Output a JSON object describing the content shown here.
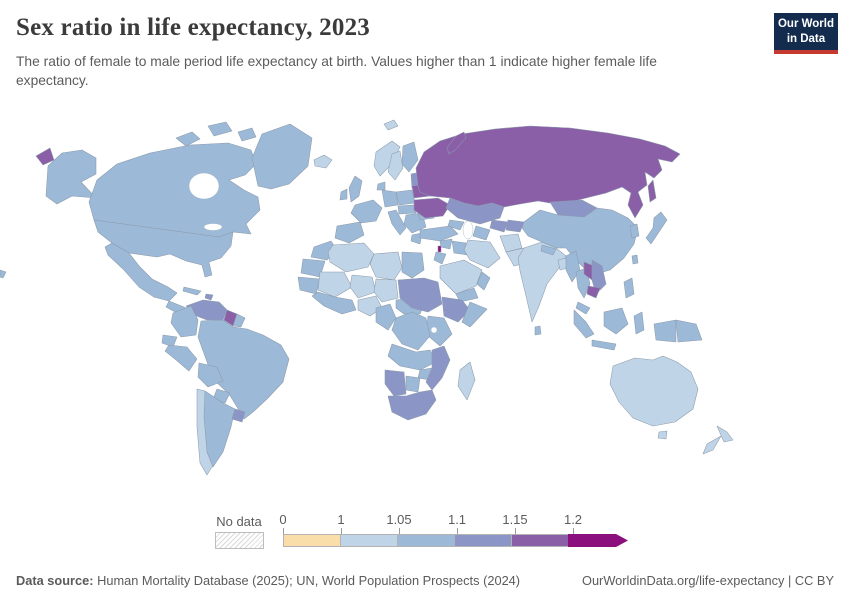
{
  "header": {
    "title": "Sex ratio in life expectancy, 2023",
    "subtitle": "The ratio of female to male period life expectancy at birth. Values higher than 1 indicate higher female life expectancy.",
    "logo_line1": "Our World",
    "logo_line2": "in Data"
  },
  "chart_data": {
    "type": "heatmap",
    "variant": "world-choropleth-map",
    "title": "Sex ratio in life expectancy, 2023",
    "unit": "female-to-male life expectancy ratio",
    "no_data_label": "No data",
    "legend_ticks": [
      "0",
      "1",
      "1.05",
      "1.1",
      "1.15",
      "1.2"
    ],
    "bins": [
      {
        "id": "b0",
        "range": "0-1",
        "color": "#fadeaa"
      },
      {
        "id": "b1",
        "range": "1-1.05",
        "color": "#c0d4e7"
      },
      {
        "id": "b2",
        "range": "1.05-1.1",
        "color": "#9cb9d8"
      },
      {
        "id": "b3",
        "range": "1.1-1.15",
        "color": "#8b96c6"
      },
      {
        "id": "b4",
        "range": "1.15-1.2",
        "color": "#8a5fa8"
      },
      {
        "id": "b5",
        "range": "1.2+",
        "color": "#8b0f7d"
      }
    ],
    "regions": {
      "usa": "b2",
      "canada": "b2",
      "greenland": "b2",
      "iceland": "b1",
      "mexico": "b2",
      "central-america": "b2",
      "cuba": "b2",
      "hispaniola": "b3",
      "venezuela": "b3",
      "guyana": "b4",
      "suriname": "b2",
      "colombia": "b2",
      "ecuador": "b2",
      "peru": "b2",
      "brazil": "b2",
      "bolivia": "b2",
      "paraguay": "b2",
      "chile": "b1",
      "argentina": "b2",
      "uruguay": "b3",
      "united-kingdom": "b2",
      "ireland": "b2",
      "norway": "b1",
      "sweden": "b1",
      "finland": "b2",
      "denmark": "b2",
      "baltic-states": "b3",
      "poland": "b2",
      "germany": "b2",
      "france": "b2",
      "spain-portugal": "b2",
      "italy": "b2",
      "central-europe": "b2",
      "balkans": "b2",
      "greece": "b2",
      "romania-bulgaria": "b2",
      "belarus": "b4",
      "ukraine": "b4",
      "russia": "b4",
      "morocco": "b2",
      "western-sahara-mauritania": "b2",
      "senegal-guinea": "b2",
      "algeria": "b1",
      "libya": "b1",
      "egypt": "b2",
      "mali": "b1",
      "niger": "b1",
      "chad": "b1",
      "nigeria": "b1",
      "west-africa-coast": "b2",
      "cameroon-gabon": "b2",
      "car-south-sudan": "b2",
      "sudan": "b3",
      "ethiopia": "b3",
      "somalia": "b2",
      "kenya-tanzania": "b2",
      "drc": "b2",
      "angola-zambia": "b2",
      "zimbabwe": "b2",
      "mozambique": "b3",
      "namibia": "b3",
      "botswana": "b2",
      "south-africa": "b3",
      "madagascar": "b1",
      "turkey": "b2",
      "syria": "b2",
      "lebanon": "b5",
      "israel-jordan": "b2",
      "iraq": "b2",
      "iran": "b1",
      "saudi-arabia": "b1",
      "yemen": "b2",
      "oman": "b2",
      "caucasus": "b2",
      "kazakhstan": "b3",
      "uzbekistan": "b3",
      "turkmenistan": "b2",
      "kyrgyzstan-tajikistan": "b3",
      "afghanistan": "b1",
      "pakistan": "b1",
      "india": "b1",
      "sri-lanka": "b2",
      "bangladesh": "b1",
      "nepal": "b2",
      "china": "b2",
      "mongolia": "b3",
      "south-korea": "b2",
      "japan": "b2",
      "taiwan": "b2",
      "myanmar": "b2",
      "thailand": "b2",
      "laos": "b4",
      "vietnam": "b3",
      "cambodia": "b4",
      "malaysia": "b2",
      "indonesia": "b2",
      "philippines": "b2",
      "papua-new-guinea": "b2",
      "australia": "b1",
      "new-zealand": "b1",
      "fiji": "b2"
    }
  },
  "footer": {
    "source_label": "Data source:",
    "source_text": "Human Mortality Database (2025); UN, World Population Prospects (2024)",
    "credit": "OurWorldinData.org/life-expectancy | CC BY"
  }
}
